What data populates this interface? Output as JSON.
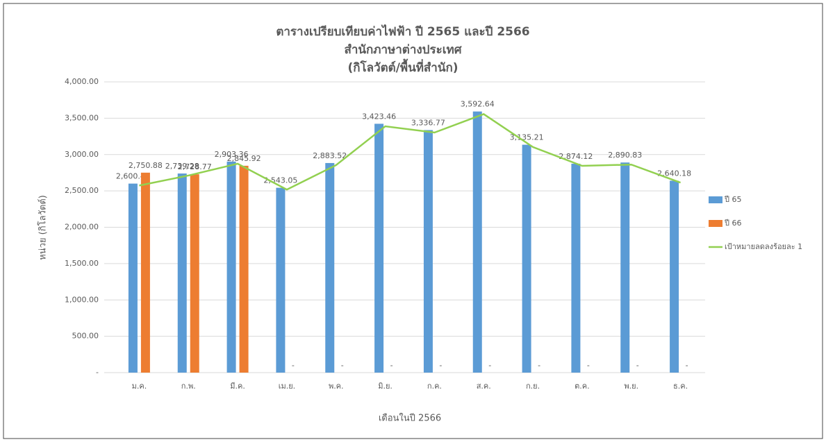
{
  "chart_data": {
    "type": "bar",
    "title": [
      "ตารางเปรียบเทียบค่าไฟฟ้า ปี 2565 และปี 2566",
      "สำนักภาษาต่างประเทศ",
      "(กิโลวัตต์/พื้นที่สำนัก)"
    ],
    "y_label": "หน่วย (กิโลวัตต์)",
    "x_label": "เดือนในปี 2566",
    "categories": [
      "ม.ค.",
      "ก.พ.",
      "มี.ค.",
      "เม.ย.",
      "พ.ค.",
      "มิ.ย.",
      "ก.ค.",
      "ส.ค.",
      "ก.ย.",
      "ต.ค.",
      "พ.ย.",
      "ธ.ค."
    ],
    "series": [
      {
        "name": "ปี 65",
        "type": "bar",
        "color": "#5b9bd5",
        "values": [
          2600.49,
          2739.28,
          2903.36,
          2543.05,
          2883.52,
          3423.46,
          3336.77,
          3592.64,
          3135.21,
          2874.12,
          2890.83,
          2640.18
        ],
        "value_labels": [
          "2,600.49",
          "2,739.28",
          "2,903.36",
          "2,543.05",
          "2,883.52",
          "3,423.46",
          "3,336.77",
          "3,592.64",
          "3,135.21",
          "2,874.12",
          "2,890.83",
          "2,640.18"
        ]
      },
      {
        "name": "ปี 66",
        "type": "bar",
        "color": "#ed7d31",
        "values": [
          2750.88,
          2728.77,
          2845.92,
          0,
          0,
          0,
          0,
          0,
          0,
          0,
          0,
          0
        ],
        "value_labels": [
          "2,750.88",
          "2,728.77",
          "2,845.92",
          "-",
          "-",
          "-",
          "-",
          "-",
          "-",
          "-",
          "-",
          "-"
        ]
      },
      {
        "name": "เป้าหมายลดลงร้อยละ 1",
        "type": "line",
        "color": "#92d050",
        "values": [
          2574,
          2712,
          2874,
          2518,
          2855,
          3389,
          3303,
          3557,
          3104,
          2845,
          2862,
          2614
        ]
      }
    ],
    "ylim": [
      0,
      4000
    ],
    "yticks": [
      {
        "value": 0,
        "label": "-"
      },
      {
        "value": 500,
        "label": "500.00"
      },
      {
        "value": 1000,
        "label": "1,000.00"
      },
      {
        "value": 1500,
        "label": "1,500.00"
      },
      {
        "value": 2000,
        "label": "2,000.00"
      },
      {
        "value": 2500,
        "label": "2,500.00"
      },
      {
        "value": 3000,
        "label": "3,000.00"
      },
      {
        "value": 3500,
        "label": "3,500.00"
      },
      {
        "value": 4000,
        "label": "4,000.00"
      }
    ],
    "grid": true,
    "legend": "right"
  }
}
